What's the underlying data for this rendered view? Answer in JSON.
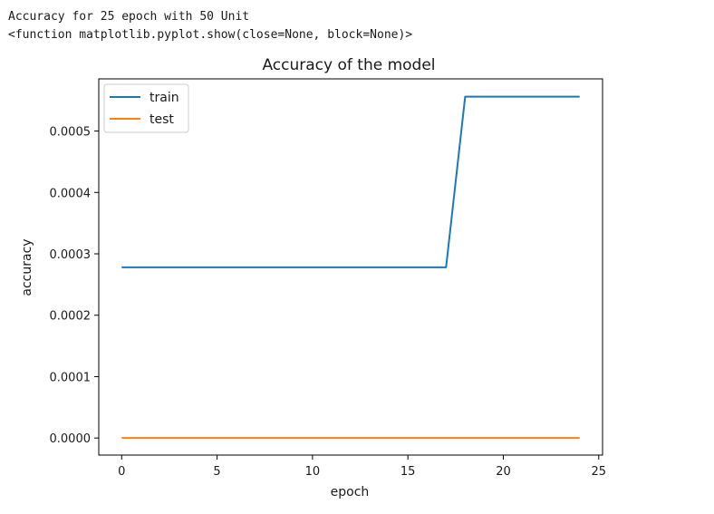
{
  "output": {
    "line1": "Accuracy for 25 epoch with 50 Unit",
    "line2": "<function matplotlib.pyplot.show(close=None, block=None)>"
  },
  "chart_data": {
    "type": "line",
    "title": "Accuracy of the model",
    "xlabel": "epoch",
    "ylabel": "accuracy",
    "xlim": [
      -1.2,
      25.2
    ],
    "ylim": [
      -2.78e-05,
      0.000585
    ],
    "xticks": [
      0,
      5,
      10,
      15,
      20,
      25
    ],
    "xtick_labels": [
      "0",
      "5",
      "10",
      "15",
      "20",
      "25"
    ],
    "yticks": [
      0,
      0.0001,
      0.0002,
      0.0003,
      0.0004,
      0.0005
    ],
    "ytick_labels": [
      "0.0000",
      "0.0001",
      "0.0002",
      "0.0003",
      "0.0004",
      "0.0005"
    ],
    "grid": false,
    "legend": "upper-left",
    "x": [
      0,
      1,
      2,
      3,
      4,
      5,
      6,
      7,
      8,
      9,
      10,
      11,
      12,
      13,
      14,
      15,
      16,
      17,
      18,
      19,
      20,
      21,
      22,
      23,
      24
    ],
    "series": [
      {
        "name": "train",
        "color": "#1f77b4",
        "values": [
          0.000278,
          0.000278,
          0.000278,
          0.000278,
          0.000278,
          0.000278,
          0.000278,
          0.000278,
          0.000278,
          0.000278,
          0.000278,
          0.000278,
          0.000278,
          0.000278,
          0.000278,
          0.000278,
          0.000278,
          0.000278,
          0.000556,
          0.000556,
          0.000556,
          0.000556,
          0.000556,
          0.000556,
          0.000556
        ]
      },
      {
        "name": "test",
        "color": "#ff7f0e",
        "values": [
          0,
          0,
          0,
          0,
          0,
          0,
          0,
          0,
          0,
          0,
          0,
          0,
          0,
          0,
          0,
          0,
          0,
          0,
          0,
          0,
          0,
          0,
          0,
          0,
          0
        ]
      }
    ]
  }
}
